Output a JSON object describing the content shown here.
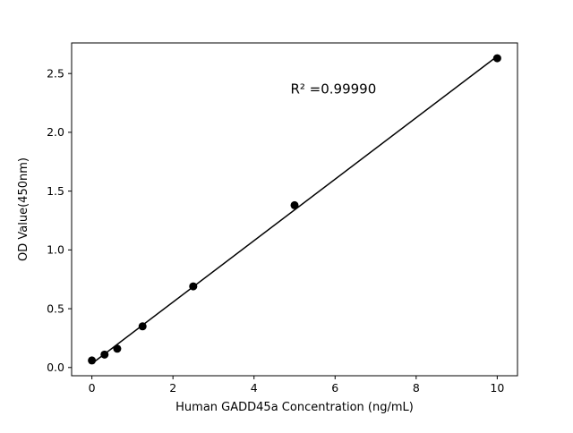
{
  "page": {
    "background_color": "#ffffff"
  },
  "chart_data": {
    "type": "scatter",
    "title": "",
    "xlabel": "Human GADD45a Concentration (ng/mL)",
    "ylabel": "OD Value(450nm)",
    "x": [
      0,
      0.3125,
      0.625,
      1.25,
      2.5,
      5,
      10
    ],
    "y": [
      0.06,
      0.11,
      0.16,
      0.35,
      0.69,
      1.38,
      2.63
    ],
    "xticks": [
      0,
      2,
      4,
      6,
      8,
      10
    ],
    "yticks": [
      0.0,
      0.5,
      1.0,
      1.5,
      2.0,
      2.5
    ],
    "xlim": [
      -0.5,
      10.5
    ],
    "ylim": [
      -0.07,
      2.76
    ],
    "grid": false,
    "legend": null,
    "marker_color": "#000000",
    "line_color": "#000000",
    "frame_color": "#000000",
    "trendline": true,
    "annotation": {
      "text": "R² =0.99990",
      "x": 4.9,
      "y": 2.33
    }
  }
}
